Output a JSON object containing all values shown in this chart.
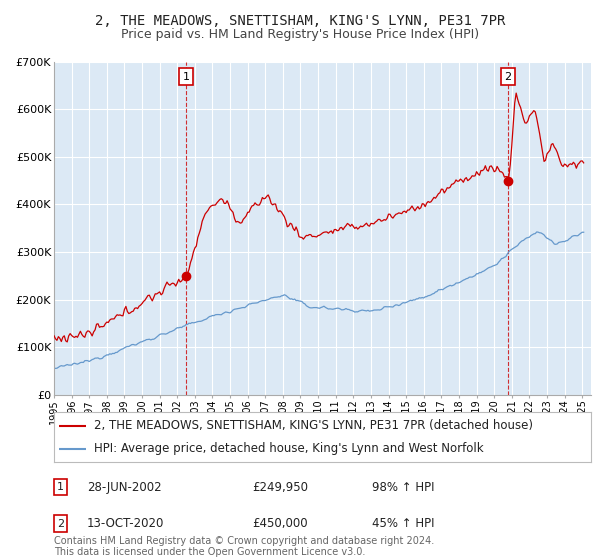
{
  "title": "2, THE MEADOWS, SNETTISHAM, KING'S LYNN, PE31 7PR",
  "subtitle": "Price paid vs. HM Land Registry's House Price Index (HPI)",
  "ylabel_ticks": [
    "£0",
    "£100K",
    "£200K",
    "£300K",
    "£400K",
    "£500K",
    "£600K",
    "£700K"
  ],
  "ylim": [
    0,
    700000
  ],
  "xlim_start": 1995.0,
  "xlim_end": 2025.5,
  "red_color": "#cc0000",
  "blue_color": "#6699cc",
  "bg_chart_color": "#dce9f5",
  "background_color": "#ffffff",
  "grid_color": "#ffffff",
  "legend_label_red": "2, THE MEADOWS, SNETTISHAM, KING'S LYNN, PE31 7PR (detached house)",
  "legend_label_blue": "HPI: Average price, detached house, King's Lynn and West Norfolk",
  "sale1_label": "1",
  "sale1_date": "28-JUN-2002",
  "sale1_price": "£249,950",
  "sale1_hpi": "98% ↑ HPI",
  "sale1_year": 2002.5,
  "sale1_value": 249950,
  "sale2_label": "2",
  "sale2_date": "13-OCT-2020",
  "sale2_price": "£450,000",
  "sale2_hpi": "45% ↑ HPI",
  "sale2_year": 2020.79,
  "sale2_value": 450000,
  "footer": "Contains HM Land Registry data © Crown copyright and database right 2024.\nThis data is licensed under the Open Government Licence v3.0.",
  "title_fontsize": 10,
  "subtitle_fontsize": 9,
  "tick_fontsize": 8,
  "legend_fontsize": 8.5,
  "footer_fontsize": 7
}
